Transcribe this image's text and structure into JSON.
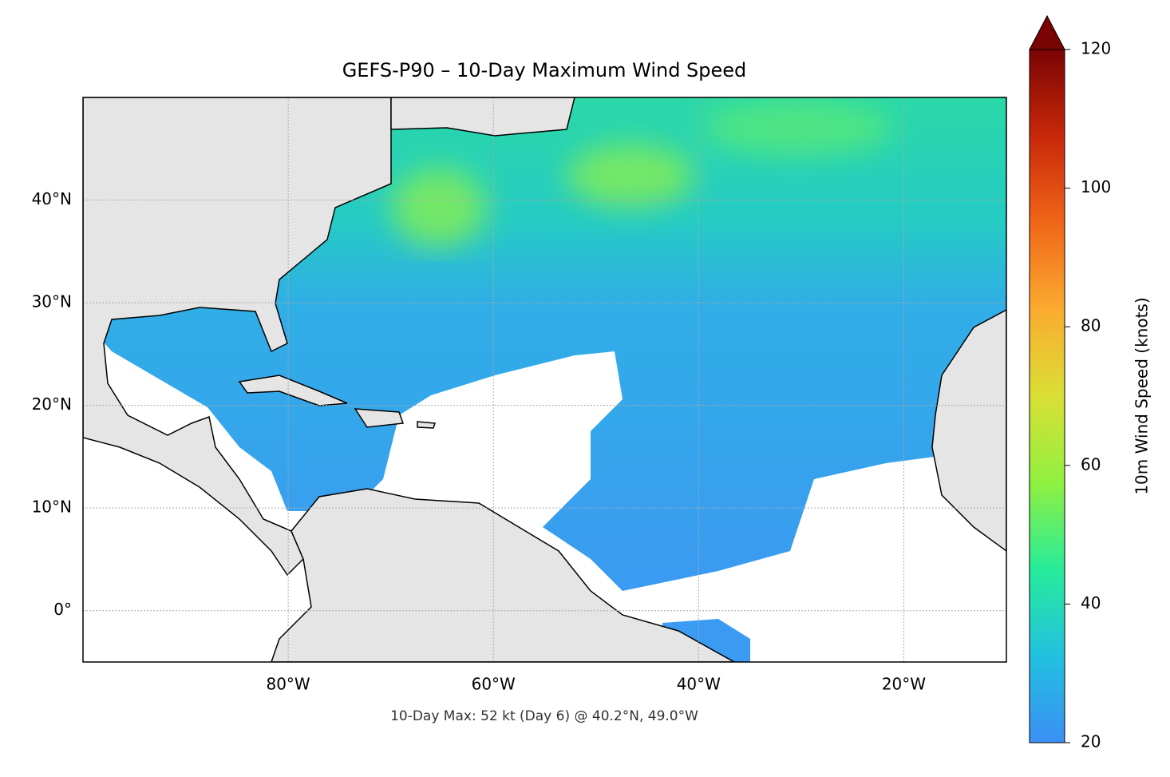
{
  "chart_data": {
    "type": "map",
    "title": "GEFS-P90 – 10-Day Maximum Wind Speed",
    "footnote": "10-Day Max: 52 kt (Day 6) @ 40.2°N, 49.0°W",
    "xlim": [
      -100,
      -10
    ],
    "ylim": [
      -5,
      50
    ],
    "xticks": [
      {
        "value": -80,
        "label": "80°W"
      },
      {
        "value": -60,
        "label": "60°W"
      },
      {
        "value": -40,
        "label": "40°W"
      },
      {
        "value": -20,
        "label": "20°W"
      }
    ],
    "yticks": [
      {
        "value": 0,
        "label": "0°"
      },
      {
        "value": 10,
        "label": "10°N"
      },
      {
        "value": 20,
        "label": "20°N"
      },
      {
        "value": 30,
        "label": "30°N"
      },
      {
        "value": 40,
        "label": "40°N"
      }
    ],
    "grid": true,
    "colorbar": {
      "label": "10m Wind Speed (knots)",
      "lim": [
        20,
        120
      ],
      "ticks": [
        20,
        40,
        60,
        80,
        100,
        120
      ],
      "colors": [
        "#3b8ff5",
        "#22c1e0",
        "#27ec9a",
        "#90f040",
        "#dadf35",
        "#fbab30",
        "#f06618",
        "#c8280a",
        "#7a0403"
      ]
    }
  }
}
